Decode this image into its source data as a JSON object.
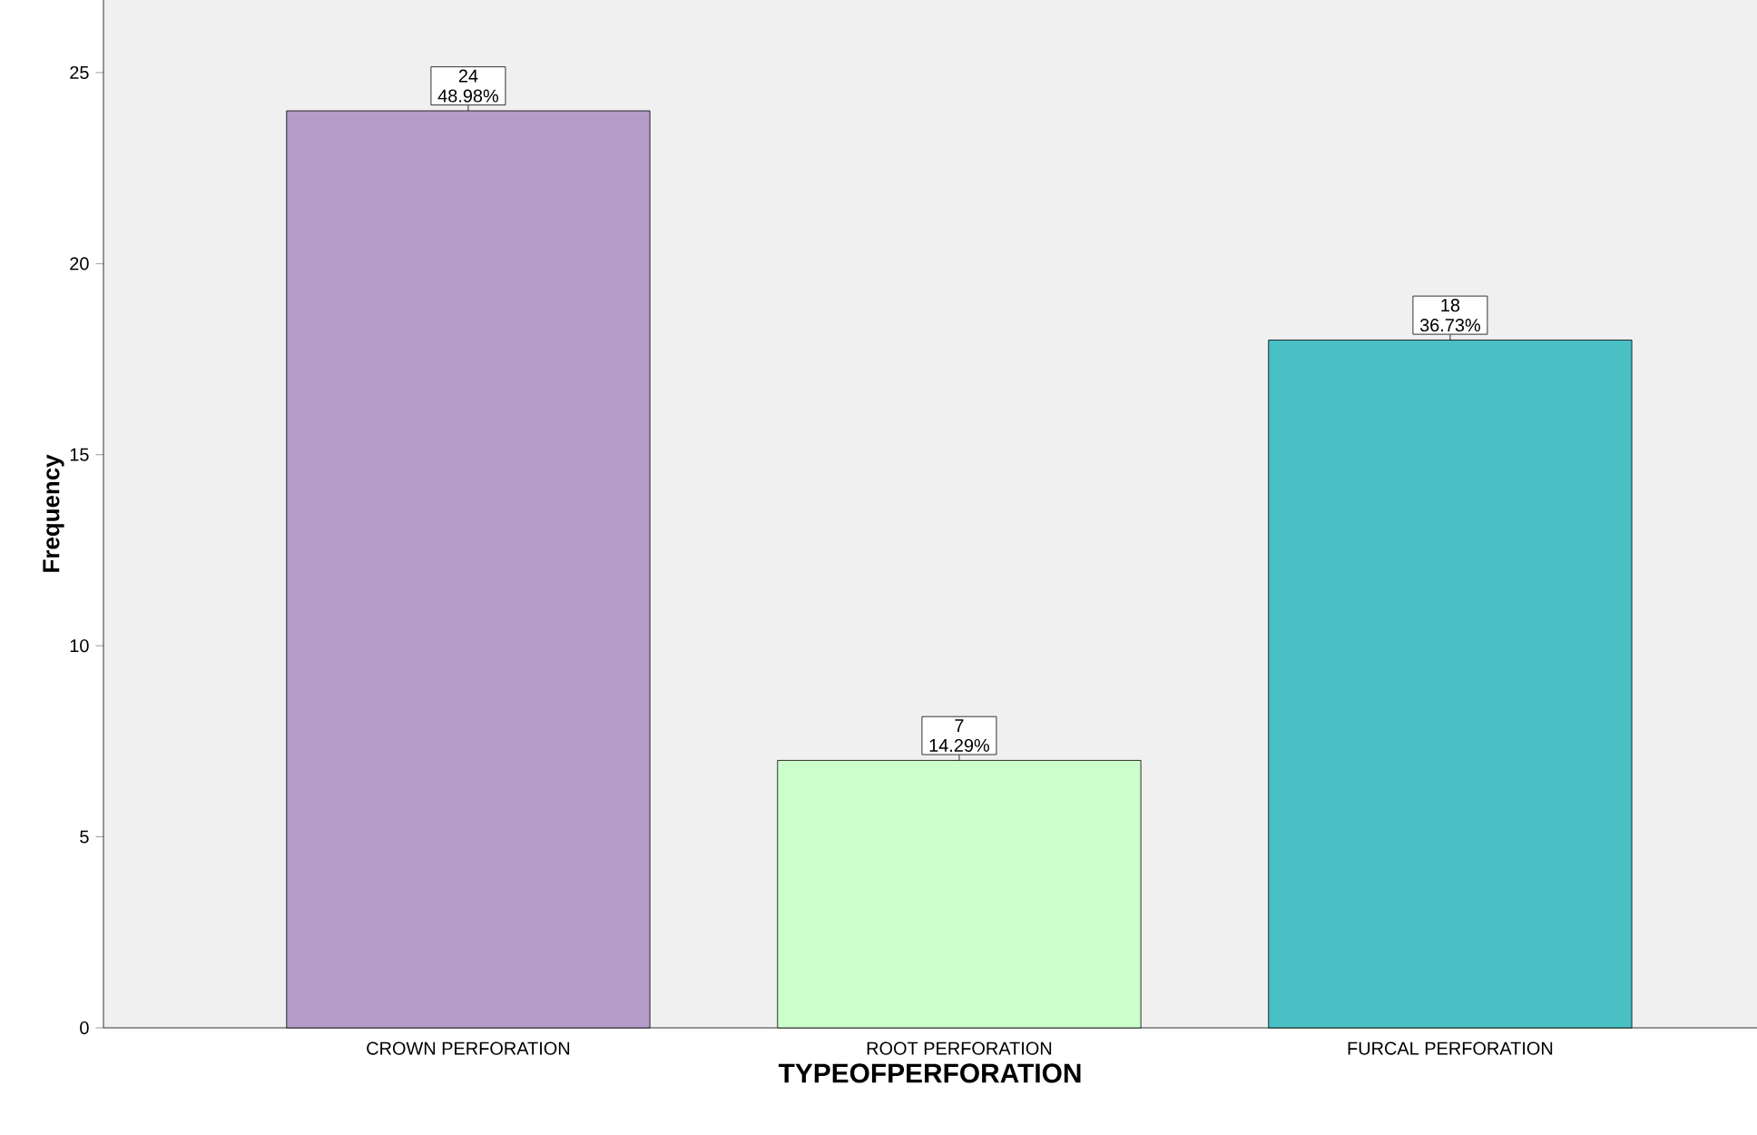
{
  "chart_data": {
    "type": "bar",
    "xlabel": "TYPEOFPERFORATION",
    "ylabel": "Frequency",
    "categories": [
      "CROWN PERFORATION",
      "ROOT PERFORATION",
      "FURCAL PERFORATION"
    ],
    "values": [
      24,
      7,
      18
    ],
    "colors": [
      "#b59bc8",
      "#ccffcc",
      "#48c0c4"
    ],
    "value_labels": [
      "24 48.98%",
      "7 14.29%",
      "18 36.73%"
    ],
    "ylim": [
      0,
      26.9
    ],
    "yticks": [
      0,
      5,
      10,
      15,
      20,
      25
    ],
    "grid": false
  }
}
